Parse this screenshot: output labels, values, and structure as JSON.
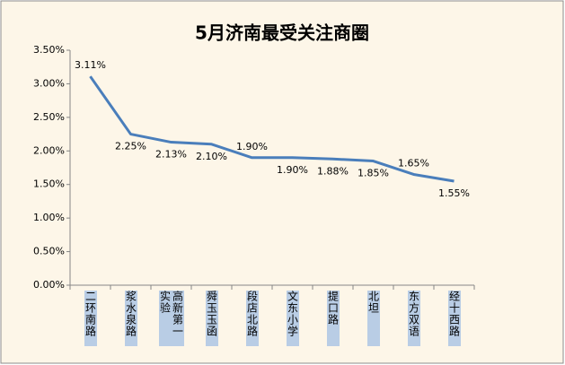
{
  "chart_data": {
    "type": "line",
    "title": "5月济南最受关注商圈",
    "categories": [
      "二环南路",
      "浆水泉路",
      "高新第一实验",
      "舜玉玉函",
      "段店北路",
      "文东小学",
      "提口路",
      "北坦",
      "东方双语",
      "经十西路"
    ],
    "values": [
      3.11,
      2.25,
      2.13,
      2.1,
      1.9,
      1.9,
      1.88,
      1.85,
      1.65,
      1.55
    ],
    "value_labels": [
      "3.11%",
      "2.25%",
      "2.13%",
      "2.10%",
      "1.90%",
      "1.90%",
      "1.88%",
      "1.85%",
      "1.65%",
      "1.55%"
    ],
    "color": "#4a7ebb",
    "ylim": [
      0,
      3.5
    ],
    "yticks": [
      {
        "value": 0,
        "label": "0.00%"
      },
      {
        "value": 0.5,
        "label": "0.50%"
      },
      {
        "value": 1,
        "label": "1.00%"
      },
      {
        "value": 1.5,
        "label": "1.50%"
      },
      {
        "value": 2,
        "label": "2.00%"
      },
      {
        "value": 2.5,
        "label": "2.50%"
      },
      {
        "value": 3,
        "label": "3.00%"
      },
      {
        "value": 3.5,
        "label": "3.50%"
      }
    ],
    "grid": false
  }
}
